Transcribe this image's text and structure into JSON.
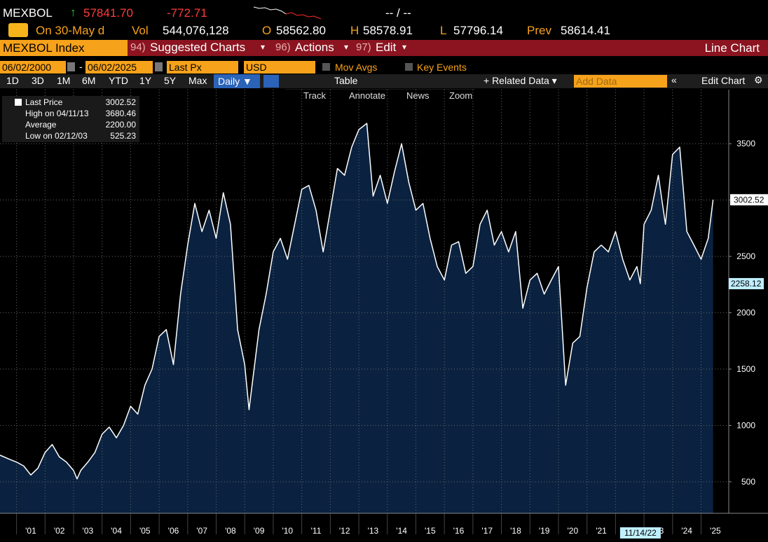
{
  "header": {
    "ticker": "MEXBOL",
    "arrow": "↑",
    "price": "57841.70",
    "change": "-772.71",
    "ratio": "-- / --",
    "on": "On 30-May d",
    "vol_label": "Vol",
    "vol": "544,076,128",
    "o_label": "O",
    "o": "58562.80",
    "h_label": "H",
    "h": "58578.91",
    "l_label": "L",
    "l": "57796.14",
    "prev_label": "Prev",
    "prev": "58614.41"
  },
  "menu": {
    "security": "MEXBOL Index",
    "items": [
      {
        "num": "94)",
        "label": "Suggested Charts"
      },
      {
        "num": "96)",
        "label": "Actions"
      },
      {
        "num": "97)",
        "label": "Edit"
      }
    ],
    "chart_type": "Line Chart"
  },
  "controls": {
    "start": "06/02/2000",
    "dash": "-",
    "end": "06/02/2025",
    "field": "Last Px",
    "currency": "USD",
    "mov_avgs": "Mov Avgs",
    "key_events": "Key Events"
  },
  "toolbar": {
    "periods": [
      "1D",
      "3D",
      "1M",
      "6M",
      "YTD",
      "1Y",
      "5Y",
      "Max"
    ],
    "frequency": "Daily ▼",
    "table": "Table",
    "related": "+ Related Data ▾",
    "add_data": "Add Data",
    "edit_chart": "Edit Chart"
  },
  "tools": [
    "Track",
    "Annotate",
    "News",
    "Zoom"
  ],
  "legend": {
    "rows": [
      {
        "label": "Last Price",
        "value": "3002.52"
      },
      {
        "label": "High on 04/11/13",
        "value": "3680.46"
      },
      {
        "label": "Average",
        "value": "2200.00"
      },
      {
        "label": "Low on 02/12/03",
        "value": "525.23"
      }
    ]
  },
  "chart_data": {
    "type": "area",
    "color": "#ffffff",
    "fill": "#0a2240",
    "x": [
      2000.42,
      2000.75,
      2001,
      2001.25,
      2001.5,
      2001.75,
      2002,
      2002.25,
      2002.5,
      2002.75,
      2003,
      2003.12,
      2003.25,
      2003.5,
      2003.75,
      2004,
      2004.25,
      2004.5,
      2004.75,
      2005,
      2005.25,
      2005.5,
      2005.75,
      2006,
      2006.25,
      2006.5,
      2006.75,
      2007,
      2007.25,
      2007.5,
      2007.75,
      2008,
      2008.25,
      2008.5,
      2008.75,
      2009,
      2009.15,
      2009.5,
      2009.75,
      2010,
      2010.25,
      2010.5,
      2010.75,
      2011,
      2011.25,
      2011.5,
      2011.75,
      2012,
      2012.25,
      2012.5,
      2012.75,
      2013,
      2013.28,
      2013.5,
      2013.75,
      2014,
      2014.25,
      2014.5,
      2014.75,
      2015,
      2015.25,
      2015.5,
      2015.75,
      2016,
      2016.25,
      2016.5,
      2016.75,
      2017,
      2017.25,
      2017.5,
      2017.75,
      2018,
      2018.25,
      2018.5,
      2018.75,
      2019,
      2019.25,
      2019.5,
      2019.75,
      2020,
      2020.25,
      2020.5,
      2020.75,
      2021,
      2021.25,
      2021.5,
      2021.75,
      2022,
      2022.25,
      2022.5,
      2022.75,
      2022.87,
      2023,
      2023.25,
      2023.5,
      2023.75,
      2024,
      2024.25,
      2024.5,
      2024.75,
      2025,
      2025.25,
      2025.42
    ],
    "values": [
      736,
      700,
      674,
      640,
      560,
      620,
      760,
      830,
      720,
      674,
      600,
      525,
      600,
      674,
      760,
      922,
      985,
      890,
      1000,
      1170,
      1100,
      1357,
      1500,
      1790,
      1850,
      1540,
      2165,
      2600,
      2970,
      2720,
      2910,
      2660,
      3065,
      2785,
      1850,
      1540,
      1140,
      1850,
      2165,
      2540,
      2660,
      2475,
      2785,
      3095,
      3130,
      2910,
      2540,
      2910,
      3280,
      3220,
      3470,
      3625,
      3680.46,
      3035,
      3220,
      2970,
      3250,
      3500,
      3160,
      2910,
      2970,
      2660,
      2410,
      2290,
      2600,
      2630,
      2350,
      2410,
      2785,
      2910,
      2600,
      2720,
      2540,
      2720,
      2040,
      2290,
      2350,
      2165,
      2290,
      2410,
      1357,
      1730,
      1790,
      2225,
      2540,
      2600,
      2540,
      2720,
      2475,
      2290,
      2410,
      2258.12,
      2785,
      2910,
      3220,
      2785,
      3405,
      3470,
      2720,
      2600,
      2475,
      2660,
      3002.52
    ],
    "xlim": [
      2000.42,
      2025.97
    ],
    "ylim": [
      220,
      3980
    ],
    "yticks": [
      500,
      1000,
      1500,
      2000,
      2500,
      3000,
      3500
    ],
    "xticks": [
      {
        "value": 2001,
        "label": "'01"
      },
      {
        "value": 2002,
        "label": "'02"
      },
      {
        "value": 2003,
        "label": "'03"
      },
      {
        "value": 2004,
        "label": "'04"
      },
      {
        "value": 2005,
        "label": "'05"
      },
      {
        "value": 2006,
        "label": "'06"
      },
      {
        "value": 2007,
        "label": "'07"
      },
      {
        "value": 2008,
        "label": "'08"
      },
      {
        "value": 2009,
        "label": "'09"
      },
      {
        "value": 2010,
        "label": "'10"
      },
      {
        "value": 2011,
        "label": "'11"
      },
      {
        "value": 2012,
        "label": "'12"
      },
      {
        "value": 2013,
        "label": "'13"
      },
      {
        "value": 2014,
        "label": "'14"
      },
      {
        "value": 2015,
        "label": "'15"
      },
      {
        "value": 2016,
        "label": "'16"
      },
      {
        "value": 2017,
        "label": "'17"
      },
      {
        "value": 2018,
        "label": "'18"
      },
      {
        "value": 2019,
        "label": "'19"
      },
      {
        "value": 2020,
        "label": "'20"
      },
      {
        "value": 2021,
        "label": "'21"
      },
      {
        "value": 2022,
        "label": "'22"
      },
      {
        "value": 2023,
        "label": "'23"
      },
      {
        "value": 2024,
        "label": "'24"
      },
      {
        "value": 2025,
        "label": "'25"
      }
    ],
    "grid": true,
    "cursor_date": "11/14/22"
  }
}
